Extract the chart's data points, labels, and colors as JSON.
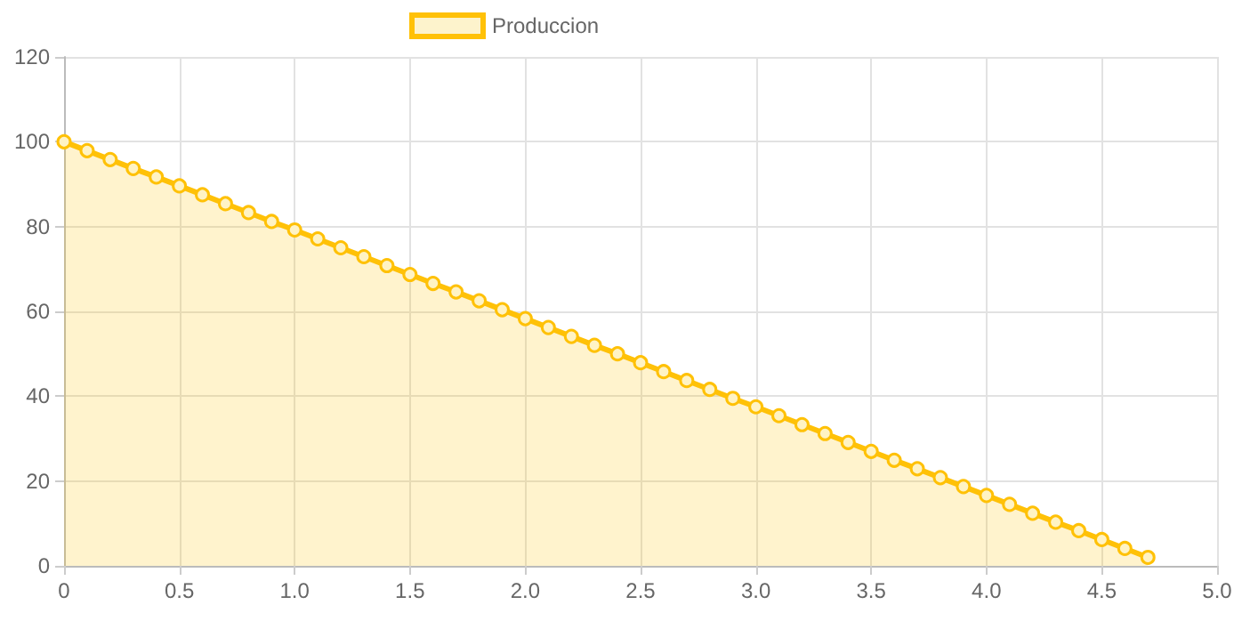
{
  "chart_data": {
    "type": "area",
    "x": [
      0,
      0.1,
      0.2,
      0.3,
      0.4,
      0.5,
      0.6,
      0.7,
      0.8,
      0.9,
      1,
      1.1,
      1.2,
      1.3,
      1.4,
      1.5,
      1.6,
      1.7,
      1.8,
      1.9,
      2,
      2.1,
      2.2,
      2.3,
      2.4,
      2.5,
      2.6,
      2.7,
      2.8,
      2.9,
      3,
      3.1,
      3.2,
      3.3,
      3.4,
      3.5,
      3.6,
      3.7,
      3.8,
      3.9,
      4,
      4.1,
      4.2,
      4.3,
      4.4,
      4.5,
      4.6,
      4.7
    ],
    "series": [
      {
        "name": "Produccion",
        "color": "#ffc107",
        "values": [
          100,
          97.9,
          95.8,
          93.7,
          91.7,
          89.6,
          87.5,
          85.4,
          83.3,
          81.2,
          79.2,
          77.1,
          75.0,
          72.9,
          70.8,
          68.7,
          66.6,
          64.6,
          62.5,
          60.4,
          58.3,
          56.2,
          54.1,
          52.0,
          50.0,
          47.9,
          45.8,
          43.7,
          41.6,
          39.5,
          37.5,
          35.4,
          33.3,
          31.2,
          29.1,
          27.0,
          24.9,
          22.9,
          20.8,
          18.7,
          16.6,
          14.5,
          12.4,
          10.3,
          8.3,
          6.2,
          4.1,
          2.0
        ]
      }
    ],
    "xlim": [
      0,
      5
    ],
    "xticks": [
      0,
      0.5,
      {
        "value": 1,
        "label": "1.0"
      },
      1.5,
      {
        "value": 2,
        "label": "2.0"
      },
      2.5,
      {
        "value": 3,
        "label": "3.0"
      },
      3.5,
      {
        "value": 4,
        "label": "4.0"
      },
      4.5,
      {
        "value": 5,
        "label": "5.0"
      }
    ],
    "ylim": [
      0,
      120
    ],
    "yticks": [
      0,
      20,
      40,
      60,
      80,
      100,
      120
    ],
    "grid": true,
    "legend": "top",
    "marker": "circle",
    "line_style": "solid"
  }
}
